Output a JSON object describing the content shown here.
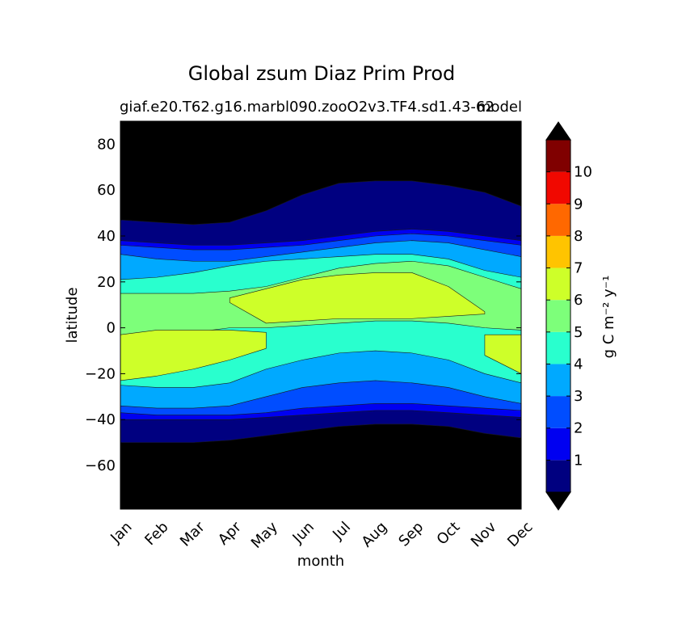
{
  "chart_data": {
    "type": "contour",
    "title": "Global zsum Diaz Prim Prod",
    "subtitle_left": "giaf.e20.T62.g16.marbl090.zooO2v3.TF4.sd1.43-62",
    "subtitle_right": "model",
    "xlabel": "month",
    "ylabel": "latitude",
    "x_categories": [
      "Jan",
      "Feb",
      "Mar",
      "Apr",
      "May",
      "Jun",
      "Jul",
      "Aug",
      "Sep",
      "Oct",
      "Nov",
      "Dec"
    ],
    "ylim": [
      -79,
      90
    ],
    "y_ticks": [
      {
        "value": 80,
        "label": "80"
      },
      {
        "value": 60,
        "label": "60"
      },
      {
        "value": 40,
        "label": "40"
      },
      {
        "value": 20,
        "label": "20"
      },
      {
        "value": 0,
        "label": "0"
      },
      {
        "value": -20,
        "label": "−20"
      },
      {
        "value": -40,
        "label": "−40"
      },
      {
        "value": -60,
        "label": "−60"
      }
    ],
    "colorbar": {
      "label": "g C m⁻² y⁻¹",
      "levels": [
        0,
        1,
        2,
        3,
        4,
        5,
        6,
        7,
        8,
        9,
        10,
        11
      ],
      "tick_labels": [
        "1",
        "2",
        "3",
        "4",
        "5",
        "6",
        "7",
        "8",
        "9",
        "10"
      ],
      "colors": [
        "#000080",
        "#0000f1",
        "#004dff",
        "#00a9ff",
        "#29ffce",
        "#7dff7a",
        "#ceff29",
        "#ffc400",
        "#ff6800",
        "#f10800",
        "#800000"
      ],
      "under_color": "#000000",
      "over_color": "#000000",
      "extend": "both"
    },
    "bands": {
      "description": "Latitude of each contour boundary per month (Jan..Dec); nh = northern boundary, sh = southern boundary",
      "nh": [
        {
          "level": 0,
          "lat": [
            47,
            46,
            45,
            46,
            51,
            58,
            63,
            64,
            64,
            62,
            59,
            53
          ]
        },
        {
          "level": 1,
          "lat": [
            38,
            37,
            36,
            36,
            37,
            38,
            40,
            42,
            43,
            42,
            40,
            38
          ]
        },
        {
          "level": 2,
          "lat": [
            36,
            35,
            34,
            34,
            35,
            36,
            38,
            40,
            41,
            40,
            38,
            36
          ]
        },
        {
          "level": 3,
          "lat": [
            32,
            30,
            29,
            29,
            31,
            33,
            35,
            37,
            38,
            37,
            34,
            31
          ]
        },
        {
          "level": 4,
          "lat": [
            21,
            22,
            24,
            27,
            29,
            30,
            31,
            32,
            32,
            30,
            25,
            22
          ]
        },
        {
          "level": 5,
          "lat": [
            15,
            15,
            15,
            16,
            18,
            22,
            26,
            28,
            29,
            27,
            22,
            17
          ]
        }
      ],
      "sh": [
        {
          "level": 0,
          "lat": [
            -50,
            -50,
            -50,
            -49,
            -47,
            -45,
            -43,
            -42,
            -42,
            -43,
            -46,
            -48
          ]
        },
        {
          "level": 1,
          "lat": [
            -40,
            -40,
            -40,
            -40,
            -39,
            -38,
            -37,
            -36,
            -36,
            -37,
            -38,
            -39
          ]
        },
        {
          "level": 2,
          "lat": [
            -37,
            -38,
            -38,
            -38,
            -37,
            -35,
            -34,
            -33,
            -33,
            -34,
            -35,
            -36
          ]
        },
        {
          "level": 3,
          "lat": [
            -34,
            -35,
            -35,
            -34,
            -30,
            -26,
            -24,
            -23,
            -24,
            -26,
            -30,
            -33
          ]
        },
        {
          "level": 4,
          "lat": [
            -25,
            -26,
            -26,
            -24,
            -18,
            -14,
            -11,
            -10,
            -11,
            -14,
            -20,
            -24
          ]
        },
        {
          "level": 5,
          "lat": [
            -4,
            -3,
            -2,
            0,
            0,
            1,
            2,
            3,
            3,
            2,
            0,
            -1
          ]
        }
      ],
      "level6_regions": [
        {
          "hemisphere": "north",
          "months": [
            "Apr",
            "May",
            "Jun",
            "Jul",
            "Aug",
            "Sep",
            "Oct",
            "Nov"
          ],
          "top": [
            13,
            17,
            21,
            23,
            24,
            24,
            18,
            7
          ],
          "bottom": [
            11,
            2,
            3,
            4,
            4,
            4,
            5,
            6
          ]
        },
        {
          "hemisphere": "south_early",
          "months": [
            "Jan",
            "Feb",
            "Mar",
            "Apr",
            "May"
          ],
          "top": [
            -3,
            -1,
            -1,
            -1,
            -2
          ],
          "bottom": [
            -23,
            -21,
            -18,
            -14,
            -9
          ]
        },
        {
          "hemisphere": "south_late",
          "months": [
            "Nov",
            "Dec"
          ],
          "top": [
            -3,
            -3
          ],
          "bottom": [
            -12,
            -20
          ]
        }
      ]
    }
  }
}
